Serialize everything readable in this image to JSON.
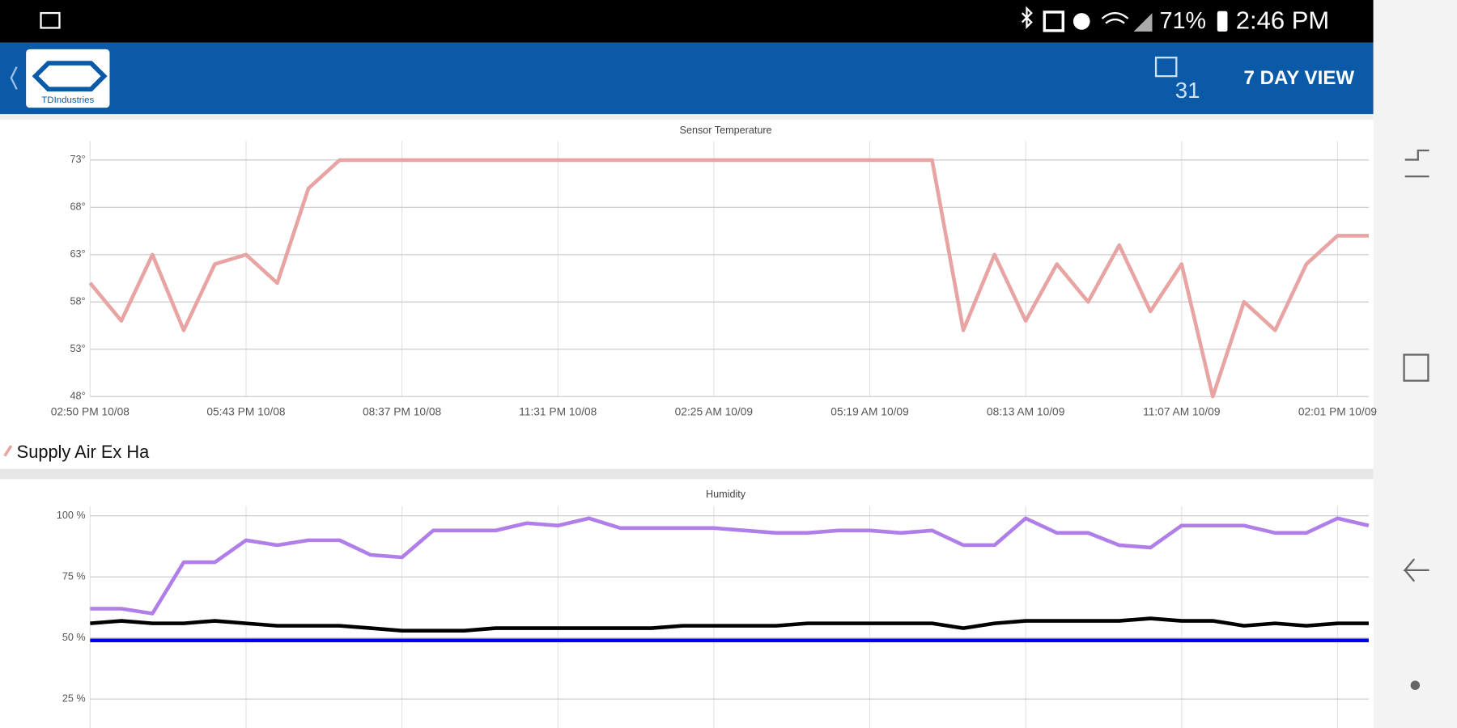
{
  "status_bar": {
    "battery": "71%",
    "time": "2:46 PM"
  },
  "header": {
    "logo_text": "TDIndustries",
    "calendar_day": "31",
    "view_button": "7 DAY VIEW"
  },
  "chart_data": [
    {
      "type": "line",
      "title": "Sensor Temperature",
      "categories": [
        "02:50 PM 10/08",
        null,
        null,
        null,
        null,
        "05:43 PM 10/08",
        null,
        null,
        null,
        null,
        "08:37 PM 10/08",
        null,
        null,
        null,
        null,
        "11:31 PM 10/08",
        null,
        null,
        null,
        null,
        "02:25 AM 10/09",
        null,
        null,
        null,
        null,
        "05:19 AM 10/09",
        null,
        null,
        null,
        null,
        "08:13 AM 10/09",
        null,
        null,
        null,
        null,
        "11:07 AM 10/09",
        null,
        null,
        null,
        null,
        "02:01 PM 10/09",
        null
      ],
      "series": [
        {
          "name": "Supply Air Ex Ha",
          "color": "#e8a3a3",
          "values": [
            60,
            56,
            63,
            55,
            62,
            63,
            60,
            70,
            73,
            73,
            73,
            73,
            73,
            73,
            73,
            73,
            73,
            73,
            73,
            73,
            73,
            73,
            73,
            73,
            73,
            73,
            73,
            73,
            55,
            63,
            56,
            62,
            58,
            64,
            57,
            62,
            48,
            58,
            55,
            62,
            65,
            65
          ]
        }
      ],
      "ylim": [
        48,
        75
      ],
      "yticks": [
        {
          "value": 48,
          "label": "48°"
        },
        {
          "value": 53,
          "label": "53°"
        },
        {
          "value": 58,
          "label": "58°"
        },
        {
          "value": 63,
          "label": "63°"
        },
        {
          "value": 68,
          "label": "68°"
        },
        {
          "value": 73,
          "label": "73°"
        }
      ],
      "grid": true,
      "legend": "bottom-left"
    },
    {
      "type": "line",
      "title": "Humidity",
      "categories": [
        "02:50 PM 10/08",
        null,
        null,
        null,
        null,
        "05:43 PM 10/08",
        null,
        null,
        null,
        null,
        "08:37 PM 10/08",
        null,
        null,
        null,
        null,
        "11:31 PM 10/08",
        null,
        null,
        null,
        null,
        "02:25 AM 10/09",
        null,
        null,
        null,
        null,
        "05:19 AM 10/09",
        null,
        null,
        null,
        null,
        "08:13 AM 10/09",
        null,
        null,
        null,
        null,
        "11:07 AM 10/09",
        null,
        null,
        null,
        null,
        "02:01 PM 10/09",
        null
      ],
      "series": [
        {
          "color": "#b07ee8",
          "values": [
            62,
            62,
            60,
            81,
            81,
            90,
            88,
            90,
            90,
            84,
            83,
            94,
            94,
            94,
            97,
            96,
            99,
            95,
            95,
            95,
            95,
            94,
            93,
            93,
            94,
            94,
            93,
            94,
            88,
            88,
            99,
            93,
            93,
            88,
            87,
            96,
            96,
            96,
            93,
            93,
            99,
            96
          ]
        },
        {
          "color": "#000000",
          "values": [
            56,
            57,
            56,
            56,
            57,
            56,
            55,
            55,
            55,
            54,
            53,
            53,
            53,
            54,
            54,
            54,
            54,
            54,
            54,
            55,
            55,
            55,
            55,
            56,
            56,
            56,
            56,
            56,
            54,
            56,
            57,
            57,
            57,
            57,
            58,
            57,
            57,
            55,
            56,
            55,
            56,
            56
          ]
        },
        {
          "color": "#0000ee",
          "values": [
            49,
            49,
            49,
            49,
            49,
            49,
            49,
            49,
            49,
            49,
            49,
            49,
            49,
            49,
            49,
            49,
            49,
            49,
            49,
            49,
            49,
            49,
            49,
            49,
            49,
            49,
            49,
            49,
            49,
            49,
            49,
            49,
            49,
            49,
            49,
            49,
            49,
            49,
            49,
            49,
            49,
            49
          ]
        }
      ],
      "ylim": [
        12,
        104
      ],
      "yticks": [
        {
          "value": 25,
          "label": "25 %"
        },
        {
          "value": 50,
          "label": "50 %"
        },
        {
          "value": 75,
          "label": "75 %"
        },
        {
          "value": 100,
          "label": "100 %"
        }
      ],
      "grid": true
    }
  ]
}
